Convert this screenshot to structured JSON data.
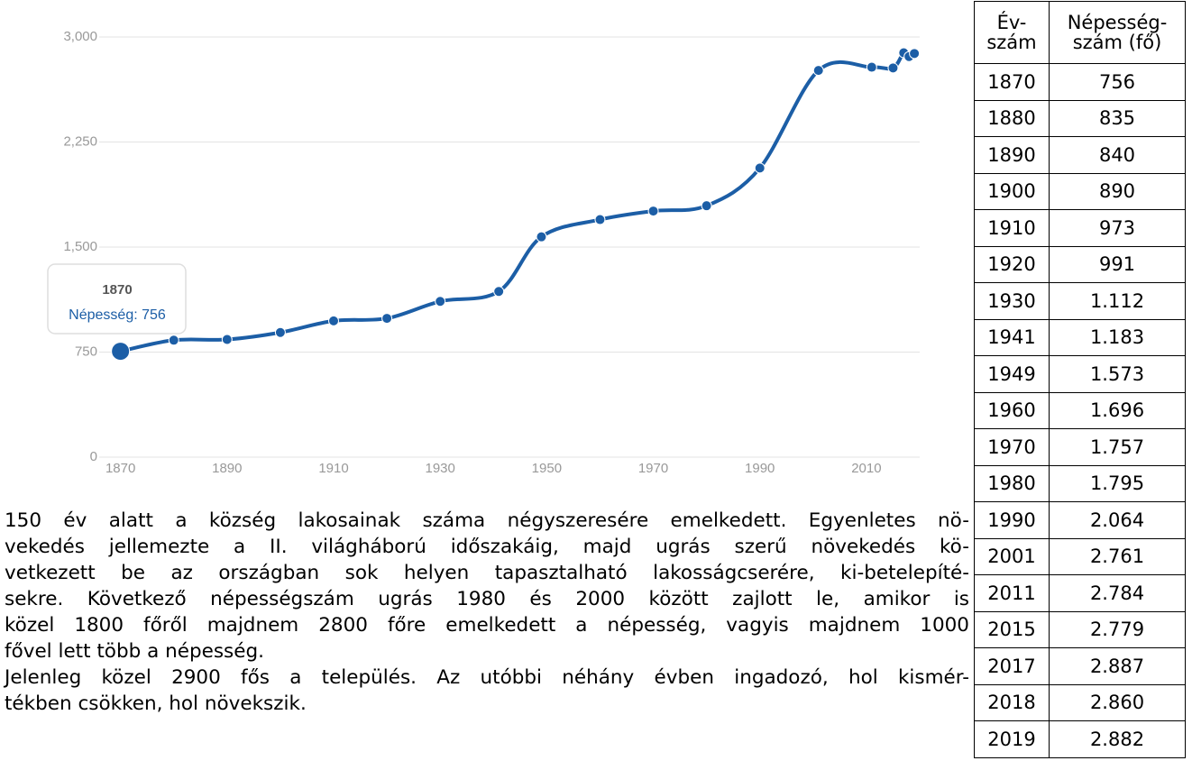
{
  "chart_data": {
    "type": "line",
    "x": [
      1870,
      1880,
      1890,
      1900,
      1910,
      1920,
      1930,
      1941,
      1949,
      1960,
      1970,
      1980,
      1990,
      2001,
      2011,
      2015,
      2017,
      2018,
      2019
    ],
    "series": [
      {
        "name": "Népesség",
        "color": "#1c5ea6",
        "values": [
          756,
          835,
          840,
          890,
          973,
          991,
          1112,
          1183,
          1573,
          1696,
          1757,
          1795,
          2064,
          2761,
          2784,
          2779,
          2887,
          2860,
          2882
        ]
      }
    ],
    "xlim": [
      1866,
      2020
    ],
    "xticks": [
      1870,
      1890,
      1910,
      1930,
      1950,
      1970,
      1990,
      2010
    ],
    "ylim": [
      0,
      3000
    ],
    "yticks": [
      0,
      750,
      {
        "value": 1500,
        "label": "1,500"
      },
      {
        "value": 2250,
        "label": "2,250"
      },
      {
        "value": 3000,
        "label": "3,000"
      }
    ],
    "grid": true,
    "tooltip": {
      "title": "1870",
      "text": "Népesség: 756"
    }
  },
  "text": [
    "150 év alatt a község lakosainak száma négyszeresére emelkedett. Egyenletes nö-",
    "vekedés jellemezte a II. világháború időszakáig, majd ugrás szerű növekedés kö-",
    "vetkezett be az országban sok helyen tapasztalható lakosságcserére, ki-betelepíté-",
    "sekre. Következő népességszám ugrás 1980 és 2000 között zajlott le, amikor is",
    "közel 1800 főről majdnem 2800 főre emelkedett a népesség, vagyis majdnem 1000",
    "fővel lett több a népesség.",
    "Jelenleg közel 2900 fős a település. Az utóbbi néhány évben ingadozó, hol kismér-",
    "tékben csökken, hol növekszik."
  ],
  "table": {
    "header": [
      [
        "Év-",
        "szám"
      ],
      [
        "Népesség-",
        "szám (fő)"
      ]
    ],
    "rows": [
      [
        "1870",
        "756"
      ],
      [
        "1880",
        "835"
      ],
      [
        "1890",
        "840"
      ],
      [
        "1900",
        "890"
      ],
      [
        "1910",
        "973"
      ],
      [
        "1920",
        "991"
      ],
      [
        "1930",
        "1.112"
      ],
      [
        "1941",
        "1.183"
      ],
      [
        "1949",
        "1.573"
      ],
      [
        "1960",
        "1.696"
      ],
      [
        "1970",
        "1.757"
      ],
      [
        "1980",
        "1.795"
      ],
      [
        "1990",
        "2.064"
      ],
      [
        "2001",
        "2.761"
      ],
      [
        "2011",
        "2.784"
      ],
      [
        "2015",
        "2.779"
      ],
      [
        "2017",
        "2.887"
      ],
      [
        "2018",
        "2.860"
      ],
      [
        "2019",
        "2.882"
      ]
    ]
  }
}
